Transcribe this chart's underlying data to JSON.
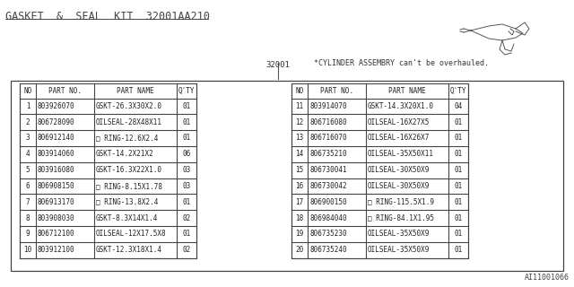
{
  "title": "GASKET  &  SEAL  KIT  32001AA210",
  "part_number_label": "32001",
  "note": "*CYLINDER ASSEMBRY can't be overhauled.",
  "diagram_id": "AI11001066",
  "background_color": "#ffffff",
  "left_parts": [
    {
      "no": "1",
      "part_no": "803926070",
      "part_name": "GSKT-26.3X30X2.0",
      "qty": "01"
    },
    {
      "no": "2",
      "part_no": "806728090",
      "part_name": "OILSEAL-28X48X11",
      "qty": "01"
    },
    {
      "no": "3",
      "part_no": "806912140",
      "part_name": "□ RING-12.6X2.4",
      "qty": "01"
    },
    {
      "no": "4",
      "part_no": "803914060",
      "part_name": "GSKT-14.2X21X2",
      "qty": "06"
    },
    {
      "no": "5",
      "part_no": "803916080",
      "part_name": "GSKT-16.3X22X1.0",
      "qty": "03"
    },
    {
      "no": "6",
      "part_no": "806908150",
      "part_name": "□ RING-8.15X1.78",
      "qty": "03"
    },
    {
      "no": "7",
      "part_no": "806913170",
      "part_name": "□ RING-13.8X2.4",
      "qty": "01"
    },
    {
      "no": "8",
      "part_no": "803908030",
      "part_name": "GSKT-8.3X14X1.4",
      "qty": "02"
    },
    {
      "no": "9",
      "part_no": "806712100",
      "part_name": "OILSEAL-12X17.5X8",
      "qty": "01"
    },
    {
      "no": "10",
      "part_no": "803912100",
      "part_name": "GSKT-12.3X18X1.4",
      "qty": "02"
    }
  ],
  "right_parts": [
    {
      "no": "11",
      "part_no": "803914070",
      "part_name": "GSKT-14.3X20X1.0",
      "qty": "04"
    },
    {
      "no": "12",
      "part_no": "806716080",
      "part_name": "OILSEAL-16X27X5",
      "qty": "01"
    },
    {
      "no": "13",
      "part_no": "806716070",
      "part_name": "OILSEAL-16X26X7",
      "qty": "01"
    },
    {
      "no": "14",
      "part_no": "806735210",
      "part_name": "OILSEAL-35X50X11",
      "qty": "01"
    },
    {
      "no": "15",
      "part_no": "806730041",
      "part_name": "OILSEAL-30X50X9",
      "qty": "01"
    },
    {
      "no": "16",
      "part_no": "806730042",
      "part_name": "OILSEAL-30X50X9",
      "qty": "01"
    },
    {
      "no": "17",
      "part_no": "806900150",
      "part_name": "□ RING-115.5X1.9",
      "qty": "01"
    },
    {
      "no": "18",
      "part_no": "806984040",
      "part_name": "□ RING-84.1X1.95",
      "qty": "01"
    },
    {
      "no": "19",
      "part_no": "806735230",
      "part_name": "OILSEAL-35X50X9",
      "qty": "01"
    },
    {
      "no": "20",
      "part_no": "806735240",
      "part_name": "OILSEAL-35X50X9",
      "qty": "01"
    }
  ],
  "col_headers": [
    "NO",
    "PART NO.",
    "PART NAME",
    "Q'TY"
  ],
  "title_fontsize": 8.5,
  "table_fontsize": 5.5,
  "note_fontsize": 6.0,
  "label_fontsize": 6.5,
  "id_fontsize": 6.0
}
